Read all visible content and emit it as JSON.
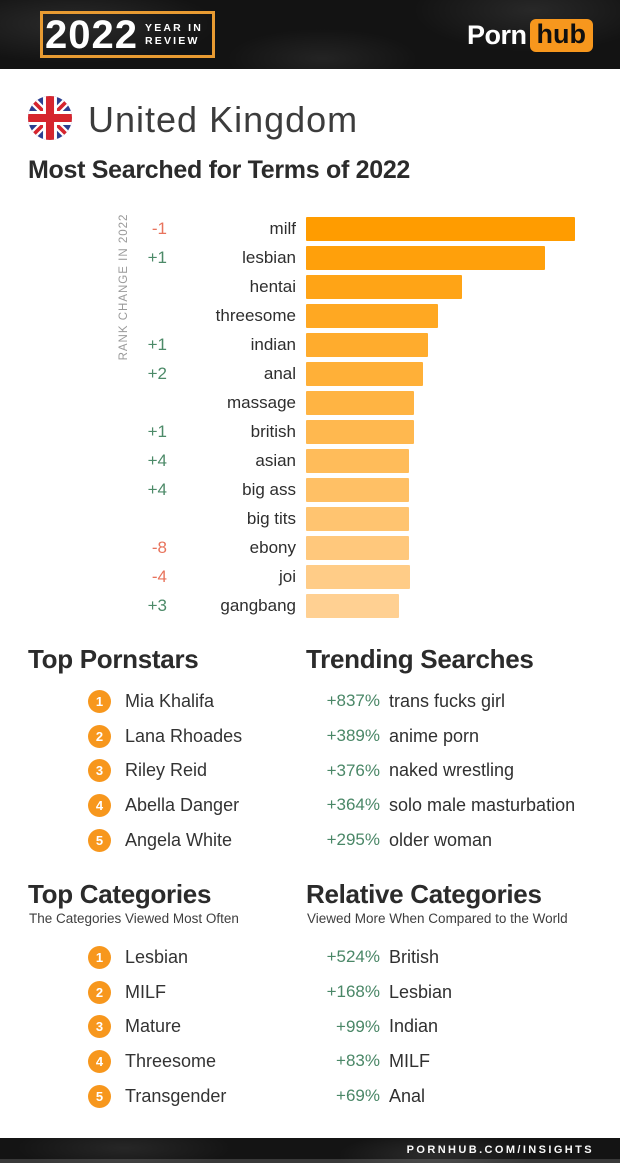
{
  "header": {
    "logo": {
      "year": "2022",
      "line1": "YEAR IN",
      "line2": "REVIEW"
    },
    "brand": {
      "part1": "Porn",
      "part2": "hub"
    }
  },
  "country": {
    "name": "United Kingdom"
  },
  "chart_data": {
    "type": "bar",
    "orientation": "horizontal",
    "title": "Most Searched for Terms of 2022",
    "axis_label": "RANK CHANGE IN 2022",
    "categories": [
      "milf",
      "lesbian",
      "hentai",
      "threesome",
      "indian",
      "anal",
      "massage",
      "british",
      "asian",
      "big ass",
      "big tits",
      "ebony",
      "joi",
      "gangbang"
    ],
    "values": [
      100,
      89,
      58,
      49,
      45.5,
      43.5,
      40.2,
      40.1,
      38.2,
      38.2,
      38.2,
      38.3,
      38.5,
      34.5
    ],
    "value_note": "relative search volume, % of top term, estimated from bar lengths",
    "rank_changes": [
      "-1",
      "+1",
      "",
      "",
      "+1",
      "+2",
      "",
      "+1",
      "+4",
      "+4",
      "",
      "-8",
      "-4",
      "+3"
    ],
    "bar_colors": [
      "#FF9C00",
      "#FFA00B",
      "#FFA416",
      "#FFA822",
      "#FFAC2D",
      "#FFB038",
      "#FFB443",
      "#FFB84F",
      "#FFBC5A",
      "#FFC065",
      "#FFC470",
      "#FFC87C",
      "#FFCC87",
      "#FFD092"
    ],
    "xlim": [
      0,
      100
    ],
    "grid": false,
    "legend": false
  },
  "sections": {
    "top_pornstars": {
      "title": "Top Pornstars",
      "items": [
        {
          "num": "1",
          "name": "Mia Khalifa"
        },
        {
          "num": "2",
          "name": "Lana Rhoades"
        },
        {
          "num": "3",
          "name": "Riley Reid"
        },
        {
          "num": "4",
          "name": "Abella Danger"
        },
        {
          "num": "5",
          "name": "Angela White"
        }
      ]
    },
    "trending_searches": {
      "title": "Trending Searches",
      "items": [
        {
          "pct": "+837%",
          "term": "trans fucks girl"
        },
        {
          "pct": "+389%",
          "term": "anime porn"
        },
        {
          "pct": "+376%",
          "term": "naked wrestling"
        },
        {
          "pct": "+364%",
          "term": "solo male masturbation"
        },
        {
          "pct": "+295%",
          "term": "older woman"
        }
      ]
    },
    "top_categories": {
      "title": "Top Categories",
      "subtitle": "The Categories Viewed Most Often",
      "items": [
        {
          "num": "1",
          "name": "Lesbian"
        },
        {
          "num": "2",
          "name": "MILF"
        },
        {
          "num": "3",
          "name": "Mature"
        },
        {
          "num": "4",
          "name": "Threesome"
        },
        {
          "num": "5",
          "name": "Transgender"
        }
      ]
    },
    "relative_categories": {
      "title": "Relative Categories",
      "subtitle": "Viewed More When Compared to the World",
      "items": [
        {
          "pct": "+524%",
          "term": "British"
        },
        {
          "pct": "+168%",
          "term": "Lesbian"
        },
        {
          "pct": "+99%",
          "term": "Indian"
        },
        {
          "pct": "+83%",
          "term": "MILF"
        },
        {
          "pct": "+69%",
          "term": "Anal"
        }
      ]
    }
  },
  "footer": {
    "url": "PORNHUB.COM/INSIGHTS"
  },
  "colors": {
    "brand_orange": "#F7971D",
    "bracket_orange": "#E89B32",
    "rank_up": "#4C8A68",
    "rank_down": "#E8735C",
    "green": "#4A8767",
    "heading": "#2B2B2B",
    "header_bg": "#131313"
  }
}
